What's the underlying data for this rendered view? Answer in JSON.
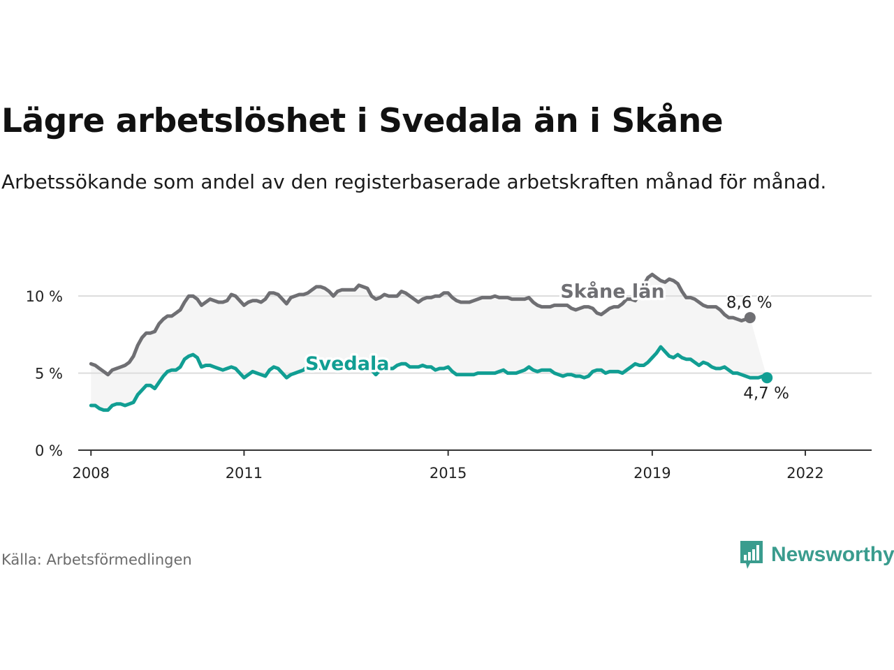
{
  "title": "Lägre arbetslöshet i Svedala än i Skåne",
  "subtitle": "Arbetssökande som andel av den registerbaserade arbetskraften månad för månad.",
  "source": "Källa: Arbetsförmedlingen",
  "brand": "Newsworthy",
  "colors": {
    "skane": "#6f6f73",
    "svedala": "#119e93",
    "band": "#f5f5f5",
    "grid": "#dcdcdc",
    "axis": "#333333",
    "brand": "#3a9c8e"
  },
  "chart_data": {
    "type": "line",
    "title": "Lägre arbetslöshet i Svedala än i Skåne",
    "xlabel": "",
    "ylabel": "",
    "ylim": [
      0,
      12
    ],
    "xlim": [
      2007.75,
      2023.3
    ],
    "x_start": 2008.0,
    "x_step": 0.08333,
    "y_ticks": [
      {
        "value": 0,
        "label": "0 %"
      },
      {
        "value": 5,
        "label": "5 %"
      },
      {
        "value": 10,
        "label": "10 %"
      }
    ],
    "x_ticks": [
      {
        "value": 2008,
        "label": "2008"
      },
      {
        "value": 2011,
        "label": "2011"
      },
      {
        "value": 2015,
        "label": "2015"
      },
      {
        "value": 2019,
        "label": "2019"
      },
      {
        "value": 2022,
        "label": "2022"
      }
    ],
    "series": [
      {
        "name": "Skåne län",
        "label": "Skåne län",
        "end_label": "8,6 %",
        "label_x": 2017.2,
        "label_y": 9.9,
        "values": [
          5.6,
          5.5,
          5.3,
          5.1,
          4.9,
          5.2,
          5.3,
          5.4,
          5.5,
          5.7,
          6.1,
          6.8,
          7.3,
          7.6,
          7.6,
          7.7,
          8.2,
          8.5,
          8.7,
          8.7,
          8.9,
          9.1,
          9.6,
          10.0,
          10.0,
          9.8,
          9.4,
          9.6,
          9.8,
          9.7,
          9.6,
          9.6,
          9.7,
          10.1,
          10.0,
          9.7,
          9.4,
          9.6,
          9.7,
          9.7,
          9.6,
          9.8,
          10.2,
          10.2,
          10.1,
          9.8,
          9.5,
          9.9,
          10.0,
          10.1,
          10.1,
          10.2,
          10.4,
          10.6,
          10.6,
          10.5,
          10.3,
          10.0,
          10.3,
          10.4,
          10.4,
          10.4,
          10.4,
          10.7,
          10.6,
          10.5,
          10.0,
          9.8,
          9.9,
          10.1,
          10.0,
          10.0,
          10.0,
          10.3,
          10.2,
          10.0,
          9.8,
          9.6,
          9.8,
          9.9,
          9.9,
          10.0,
          10.0,
          10.2,
          10.2,
          9.9,
          9.7,
          9.6,
          9.6,
          9.6,
          9.7,
          9.8,
          9.9,
          9.9,
          9.9,
          10.0,
          9.9,
          9.9,
          9.9,
          9.8,
          9.8,
          9.8,
          9.8,
          9.9,
          9.6,
          9.4,
          9.3,
          9.3,
          9.3,
          9.4,
          9.4,
          9.4,
          9.4,
          9.2,
          9.1,
          9.2,
          9.3,
          9.3,
          9.2,
          8.9,
          8.8,
          9.0,
          9.2,
          9.3,
          9.3,
          9.5,
          9.8,
          9.8,
          9.7,
          10.1,
          10.7,
          11.2,
          11.4,
          11.2,
          11.0,
          10.9,
          11.1,
          11.0,
          10.8,
          10.3,
          9.9,
          9.9,
          9.8,
          9.6,
          9.4,
          9.3,
          9.3,
          9.3,
          9.1,
          8.8,
          8.6,
          8.6,
          8.5,
          8.4,
          8.5,
          8.6
        ]
      },
      {
        "name": "Svedala",
        "label": "Svedala",
        "end_label": "4,7 %",
        "label_x": 2012.2,
        "label_y": 5.2,
        "values": [
          2.9,
          2.9,
          2.7,
          2.6,
          2.6,
          2.9,
          3.0,
          3.0,
          2.9,
          3.0,
          3.1,
          3.6,
          3.9,
          4.2,
          4.2,
          4.0,
          4.4,
          4.8,
          5.1,
          5.2,
          5.2,
          5.4,
          5.9,
          6.1,
          6.2,
          6.0,
          5.4,
          5.5,
          5.5,
          5.4,
          5.3,
          5.2,
          5.3,
          5.4,
          5.3,
          5.0,
          4.7,
          4.9,
          5.1,
          5.0,
          4.9,
          4.8,
          5.2,
          5.4,
          5.3,
          5.0,
          4.7,
          4.9,
          5.0,
          5.1,
          5.2,
          5.5,
          5.6,
          5.5,
          5.3,
          5.4,
          5.7,
          5.6,
          5.5,
          5.6,
          5.7,
          5.6,
          5.5,
          5.7,
          5.8,
          5.6,
          5.2,
          4.9,
          5.2,
          5.3,
          5.3,
          5.3,
          5.5,
          5.6,
          5.6,
          5.4,
          5.4,
          5.4,
          5.5,
          5.4,
          5.4,
          5.2,
          5.3,
          5.3,
          5.4,
          5.1,
          4.9,
          4.9,
          4.9,
          4.9,
          4.9,
          5.0,
          5.0,
          5.0,
          5.0,
          5.0,
          5.1,
          5.2,
          5.0,
          5.0,
          5.0,
          5.1,
          5.2,
          5.4,
          5.2,
          5.1,
          5.2,
          5.2,
          5.2,
          5.0,
          4.9,
          4.8,
          4.9,
          4.9,
          4.8,
          4.8,
          4.7,
          4.8,
          5.1,
          5.2,
          5.2,
          5.0,
          5.1,
          5.1,
          5.1,
          5.0,
          5.2,
          5.4,
          5.6,
          5.5,
          5.5,
          5.7,
          6.0,
          6.3,
          6.7,
          6.4,
          6.1,
          6.0,
          6.2,
          6.0,
          5.9,
          5.9,
          5.7,
          5.5,
          5.7,
          5.6,
          5.4,
          5.3,
          5.3,
          5.4,
          5.2,
          5.0,
          5.0,
          4.9,
          4.8,
          4.7,
          4.7,
          4.7,
          4.8,
          4.7
        ]
      }
    ]
  }
}
